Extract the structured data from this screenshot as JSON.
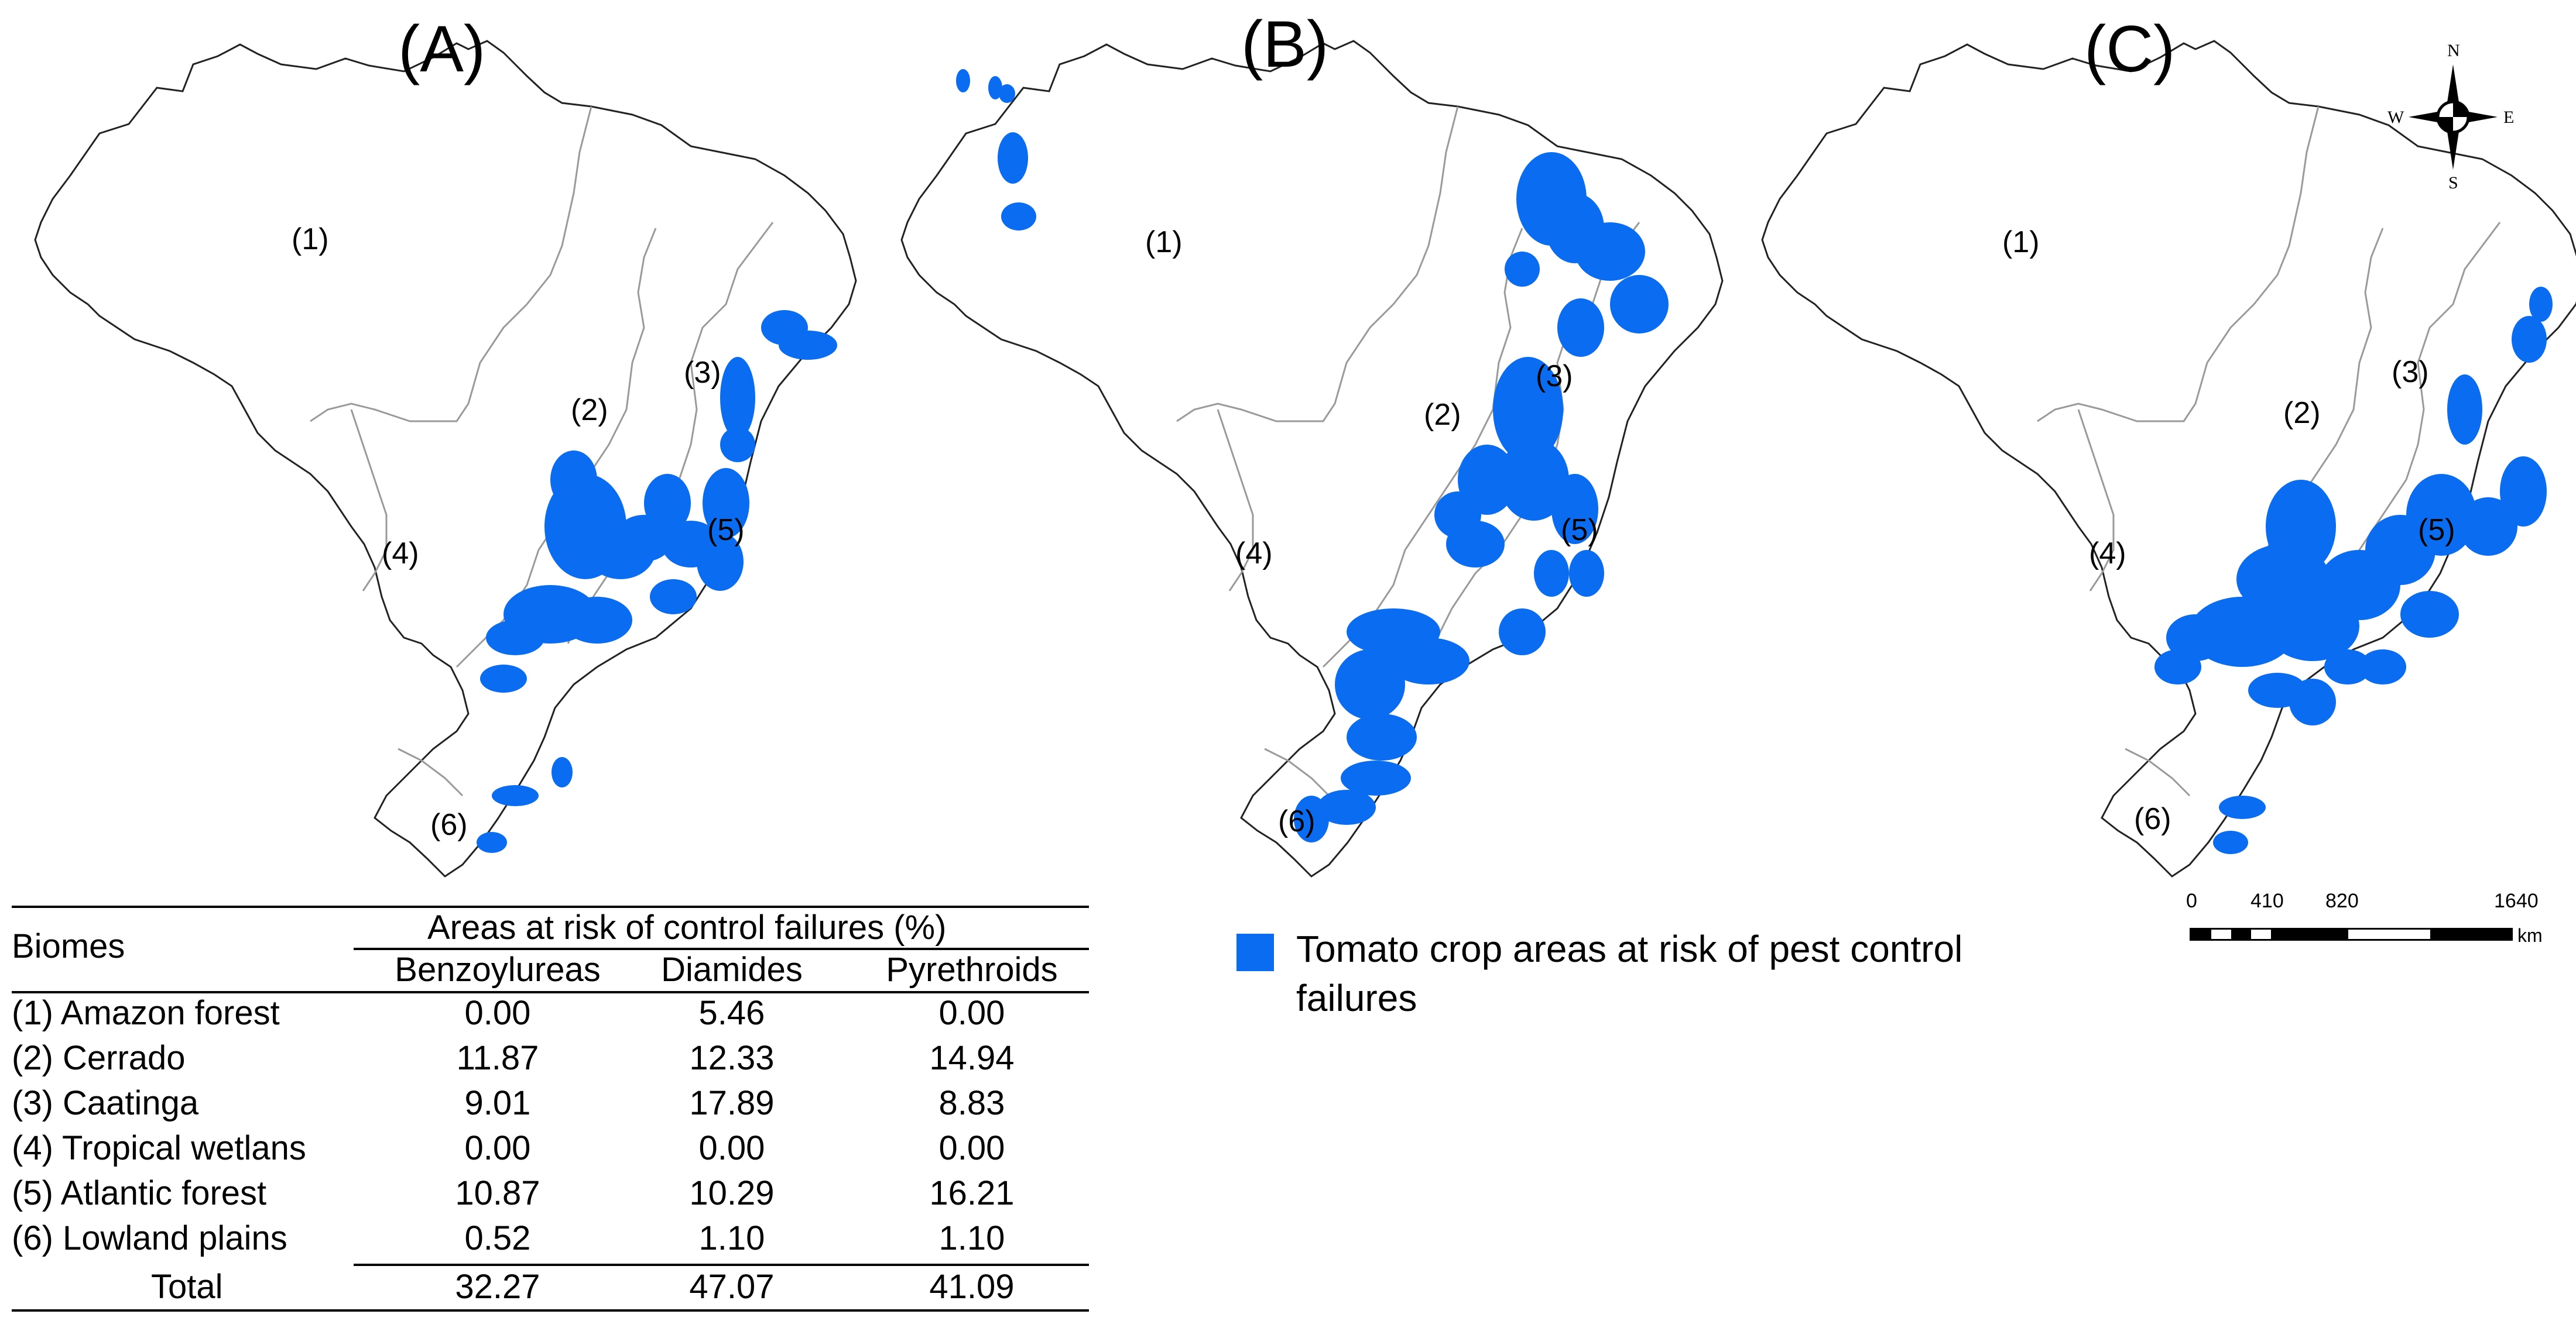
{
  "panels": [
    {
      "label": "(A)",
      "biome_labels": [
        "(1)",
        "(2)",
        "(3)",
        "(4)",
        "(5)",
        "(6)"
      ],
      "risk_pattern": "benzoylureas"
    },
    {
      "label": "(B)",
      "biome_labels": [
        "(1)",
        "(2)",
        "(3)",
        "(4)",
        "(5)",
        "(6)"
      ],
      "risk_pattern": "diamides"
    },
    {
      "label": "(C)",
      "biome_labels": [
        "(1)",
        "(2)",
        "(3)",
        "(4)",
        "(5)",
        "(6)"
      ],
      "risk_pattern": "pyrethroids"
    }
  ],
  "colors": {
    "risk_area": "#0a6cf0",
    "country_outline": "#222222",
    "biome_outline": "#9a9a9a"
  },
  "legend": {
    "swatch_color": "#0a6cf0",
    "text": "Tomato crop areas at risk of pest control failures"
  },
  "compass": {
    "n": "N",
    "s": "S",
    "e": "E",
    "w": "W"
  },
  "scale": {
    "ticks": [
      "0",
      "410",
      "820",
      "1640"
    ],
    "unit": "km"
  },
  "table": {
    "row_header": "Biomes",
    "group_header": "Areas at risk of control failures (%)",
    "columns": [
      "Benzoylureas",
      "Diamides",
      "Pyrethroids"
    ],
    "rows": [
      {
        "biome": "(1) Amazon forest",
        "values": [
          "0.00",
          "5.46",
          "0.00"
        ]
      },
      {
        "biome": "(2) Cerrado",
        "values": [
          "11.87",
          "12.33",
          "14.94"
        ]
      },
      {
        "biome": "(3) Caatinga",
        "values": [
          "9.01",
          "17.89",
          "8.83"
        ]
      },
      {
        "biome": "(4) Tropical wetlans",
        "values": [
          "0.00",
          "0.00",
          "0.00"
        ]
      },
      {
        "biome": "(5) Atlantic forest",
        "values": [
          "10.87",
          "10.29",
          "16.21"
        ]
      },
      {
        "biome": "(6) Lowland plains",
        "values": [
          "0.52",
          "1.10",
          "1.10"
        ]
      }
    ],
    "total": {
      "label": "Total",
      "values": [
        "32.27",
        "47.07",
        "41.09"
      ]
    }
  }
}
